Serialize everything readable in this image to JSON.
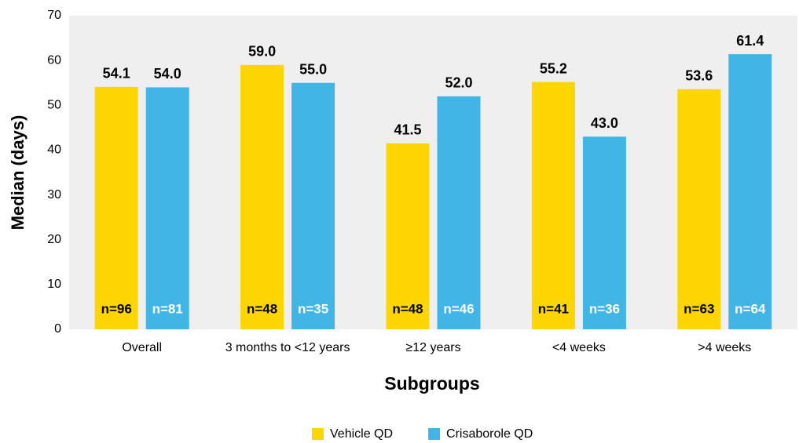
{
  "chart_data": {
    "type": "bar",
    "x_label": "Subgroups",
    "y_label": "Median (days)",
    "categories": [
      "Overall",
      "3 months to <12 years",
      "≥12 years",
      "<4 weeks",
      ">4 weeks"
    ],
    "series": [
      {
        "name": "Vehicle QD",
        "color": "#fdd600",
        "label_color": "#000000",
        "values": [
          54.1,
          59.0,
          41.5,
          55.2,
          53.6
        ],
        "value_labels": [
          "54.1",
          "59.0",
          "41.5",
          "55.2",
          "53.6"
        ],
        "n_labels": [
          "n=96",
          "n=48",
          "n=48",
          "n=41",
          "n=63"
        ]
      },
      {
        "name": "Crisaborole QD",
        "color": "#41b6e6",
        "label_color": "#ffffff",
        "values": [
          54.0,
          55.0,
          52.0,
          43.0,
          61.4
        ],
        "value_labels": [
          "54.0",
          "55.0",
          "52.0",
          "43.0",
          "61.4"
        ],
        "n_labels": [
          "n=81",
          "n=35",
          "n=46",
          "n=36",
          "n=64"
        ]
      }
    ],
    "ylim": [
      0,
      70
    ],
    "yticks": [
      0,
      10,
      20,
      30,
      40,
      50,
      60,
      70
    ],
    "grid": false
  }
}
